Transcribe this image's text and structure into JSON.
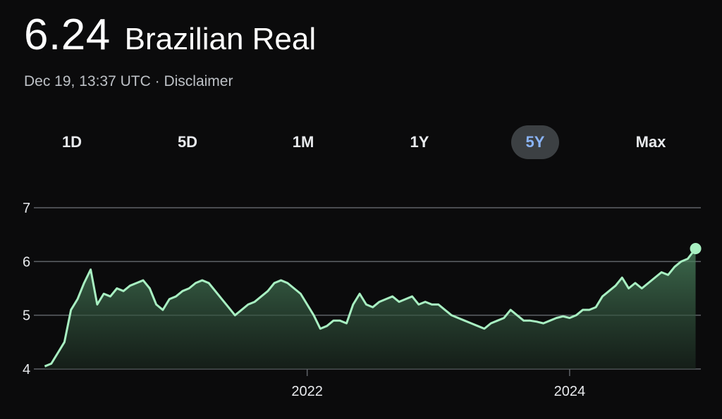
{
  "header": {
    "price": "6.24",
    "currency": "Brazilian Real",
    "timestamp": "Dec 19, 13:37 UTC",
    "separator": "·",
    "disclaimer": "Disclaimer"
  },
  "ranges": [
    {
      "label": "1D",
      "active": false
    },
    {
      "label": "5D",
      "active": false
    },
    {
      "label": "1M",
      "active": false
    },
    {
      "label": "1Y",
      "active": false
    },
    {
      "label": "5Y",
      "active": true
    },
    {
      "label": "Max",
      "active": false
    }
  ],
  "colors": {
    "line": "#a8f0c2",
    "grid": "#5f6368",
    "active_bg": "#3c4043",
    "active_text": "#8ab4f8"
  },
  "chart_data": {
    "type": "area",
    "title": "",
    "xlabel": "",
    "ylabel": "",
    "ylim": [
      4,
      7
    ],
    "y_ticks": [
      "4",
      "5",
      "6",
      "7"
    ],
    "x_ticks": [
      {
        "label": "2022",
        "x": 2022.0
      },
      {
        "label": "2024",
        "x": 2024.0
      }
    ],
    "xlim": [
      2019.96,
      2025.0
    ],
    "grid": true,
    "series": [
      {
        "name": "",
        "x": [
          2020.0,
          2020.05,
          2020.1,
          2020.15,
          2020.2,
          2020.25,
          2020.3,
          2020.35,
          2020.4,
          2020.45,
          2020.5,
          2020.55,
          2020.6,
          2020.65,
          2020.7,
          2020.75,
          2020.8,
          2020.85,
          2020.9,
          2020.95,
          2021.0,
          2021.05,
          2021.1,
          2021.15,
          2021.2,
          2021.25,
          2021.3,
          2021.35,
          2021.4,
          2021.45,
          2021.5,
          2021.55,
          2021.6,
          2021.65,
          2021.7,
          2021.75,
          2021.8,
          2021.85,
          2021.9,
          2021.95,
          2022.0,
          2022.05,
          2022.1,
          2022.15,
          2022.2,
          2022.25,
          2022.3,
          2022.35,
          2022.4,
          2022.45,
          2022.5,
          2022.55,
          2022.6,
          2022.65,
          2022.7,
          2022.75,
          2022.8,
          2022.85,
          2022.9,
          2022.95,
          2023.0,
          2023.05,
          2023.1,
          2023.15,
          2023.2,
          2023.25,
          2023.3,
          2023.35,
          2023.4,
          2023.45,
          2023.5,
          2023.55,
          2023.6,
          2023.65,
          2023.7,
          2023.75,
          2023.8,
          2023.85,
          2023.9,
          2023.95,
          2024.0,
          2024.05,
          2024.1,
          2024.15,
          2024.2,
          2024.25,
          2024.3,
          2024.35,
          2024.4,
          2024.45,
          2024.5,
          2024.55,
          2024.6,
          2024.65,
          2024.7,
          2024.75,
          2024.8,
          2024.85,
          2024.9,
          2024.96
        ],
        "values": [
          4.05,
          4.1,
          4.3,
          4.5,
          5.1,
          5.3,
          5.6,
          5.85,
          5.2,
          5.4,
          5.35,
          5.5,
          5.45,
          5.55,
          5.6,
          5.65,
          5.5,
          5.2,
          5.1,
          5.3,
          5.35,
          5.45,
          5.5,
          5.6,
          5.65,
          5.6,
          5.45,
          5.3,
          5.15,
          5.0,
          5.1,
          5.2,
          5.25,
          5.35,
          5.45,
          5.6,
          5.65,
          5.6,
          5.5,
          5.4,
          5.2,
          5.0,
          4.75,
          4.8,
          4.9,
          4.9,
          4.85,
          5.2,
          5.4,
          5.2,
          5.15,
          5.25,
          5.3,
          5.35,
          5.25,
          5.3,
          5.35,
          5.2,
          5.25,
          5.2,
          5.2,
          5.1,
          5.0,
          4.95,
          4.9,
          4.85,
          4.8,
          4.75,
          4.85,
          4.9,
          4.95,
          5.1,
          5.0,
          4.9,
          4.9,
          4.88,
          4.85,
          4.9,
          4.95,
          4.98,
          4.95,
          5.0,
          5.1,
          5.1,
          5.15,
          5.35,
          5.45,
          5.55,
          5.7,
          5.5,
          5.6,
          5.5,
          5.6,
          5.7,
          5.8,
          5.75,
          5.9,
          6.0,
          6.05,
          6.24
        ]
      }
    ]
  }
}
